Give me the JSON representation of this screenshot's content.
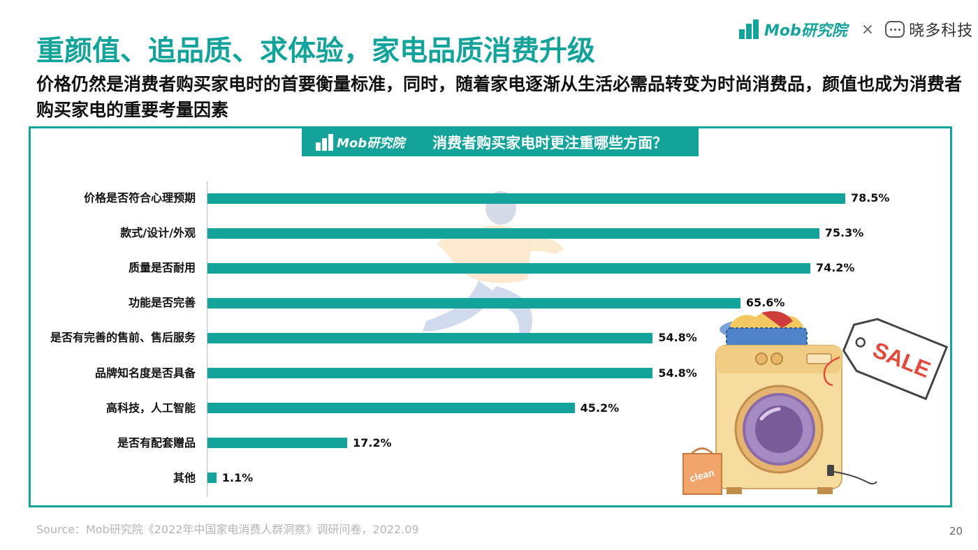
{
  "header": {
    "title": "重颜值、追品质、求体验，家电品质消费升级",
    "subtitle": "价格仍然是消费者购买家电时的首要衡量标准，同时，随着家电逐渐从生活必需品转变为时尚消费品，颜值也成为消费者购买家电的重要考量因素"
  },
  "brand": {
    "mob": "Mob研究院",
    "times": "×",
    "partner": "晓多科技"
  },
  "chart_header": {
    "logo_text": "Mob研究院",
    "title": "消费者购买家电时更注重哪些方面？"
  },
  "illustration": {
    "sale_tag": "SALE",
    "clean_bag": "clean"
  },
  "chart_data": {
    "type": "bar",
    "orientation": "horizontal",
    "title": "消费者购买家电时更注重哪些方面？",
    "categories": [
      "价格是否符合心理预期",
      "款式/设计/外观",
      "质量是否耐用",
      "功能是否完善",
      "是否有完善的售前、售后服务",
      "品牌知名度是否具备",
      "高科技，人工智能",
      "是否有配套赠品",
      "其他"
    ],
    "values": [
      78.5,
      75.3,
      74.2,
      65.6,
      54.8,
      54.8,
      45.2,
      17.2,
      1.1
    ],
    "value_labels": [
      "78.5%",
      "75.3%",
      "74.2%",
      "65.6%",
      "54.8%",
      "54.8%",
      "45.2%",
      "17.2%",
      "1.1%"
    ],
    "unit": "%",
    "xlim": [
      0,
      100
    ],
    "grid": false,
    "legend": "none",
    "color": "#14a39a"
  },
  "footer": {
    "source": "Source：Mob研究院《2022年中国家电消费人群洞察》调研问卷，2022.09",
    "page": "20"
  }
}
